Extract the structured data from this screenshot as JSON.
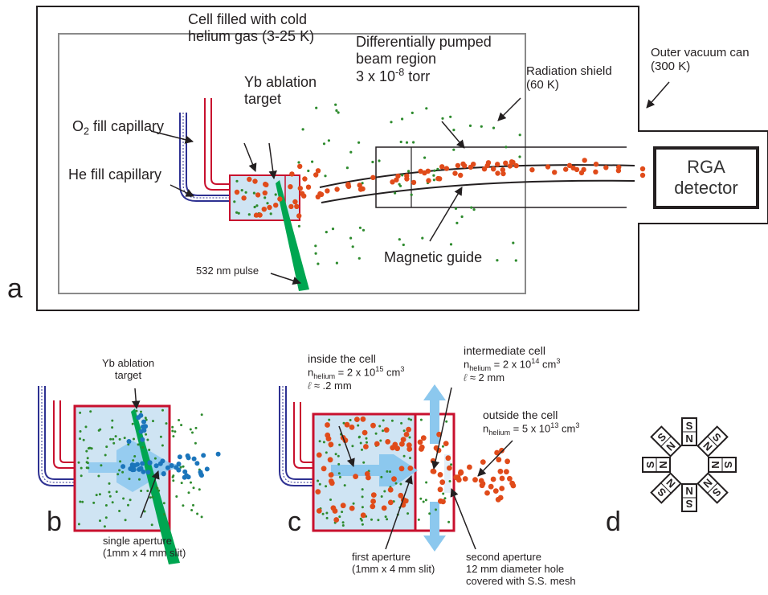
{
  "panel_a": {
    "letter": "a",
    "cell_label": [
      "Cell filled with cold",
      "helium gas (3-25 K)"
    ],
    "diff_pumped_label": [
      "Differentially pumped",
      "beam region"
    ],
    "pressure_base": "3 x 10",
    "pressure_exp": "-8",
    "pressure_unit": " torr",
    "radiation_shield": [
      "Radiation shield",
      "(60 K)"
    ],
    "outer_can": [
      "Outer vacuum can",
      "(300 K)"
    ],
    "o2_prefix": "O",
    "o2_sub": "2",
    "o2_suffix": " fill capillary",
    "he_fill": "He fill capillary",
    "yb_target": [
      "Yb ablation",
      "target"
    ],
    "pulse": "532 nm pulse",
    "magnetic_guide": "Magnetic guide",
    "rga": [
      "RGA",
      "detector"
    ]
  },
  "panel_b": {
    "letter": "b",
    "yb_target": [
      "Yb ablation",
      "target"
    ],
    "aperture": [
      "single aperture",
      "(1mm x 4 mm slit)"
    ]
  },
  "panel_c": {
    "letter": "c",
    "inside": {
      "title": "inside the cell",
      "n": "n",
      "n_sub": "helium",
      "eq": " = 2 x 10",
      "exp": "15",
      "unit": " cm",
      "unit_exp": "3",
      "ell": "ℓ",
      "ell_val": "  ≈ .2 mm"
    },
    "intermediate": {
      "title": "intermediate cell",
      "n": "n",
      "n_sub": "helium",
      "eq": " = 2 x 10",
      "exp": "14",
      "unit": " cm",
      "unit_exp": "3",
      "ell": "ℓ",
      "ell_val": "  ≈ 2 mm"
    },
    "outside": {
      "title": "outside the cell",
      "n": "n",
      "n_sub": "helium",
      "eq": " = 5 x 10",
      "exp": "13",
      "unit": " cm",
      "unit_exp": "3"
    },
    "first_aperture": [
      "first aperture",
      "(1mm x 4 mm slit)"
    ],
    "second_aperture": [
      "second aperture",
      "12 mm diameter hole",
      "covered with S.S. mesh"
    ]
  },
  "panel_d": {
    "letter": "d",
    "magnet_top": "S",
    "magnet_bottom": "N",
    "magnet_left": "S",
    "magnet_right": "N"
  },
  "colors": {
    "capillary_red": "#c8102e",
    "capillary_blue": "#2e3192",
    "cell_fill": "#cfe4f3",
    "cell_border": "#c8102e",
    "helium_dot": "#2e8b2e",
    "yb_atom": "#e04b1a",
    "yb_atom_b": "#1b75bb",
    "laser": "#00a651",
    "flow_arrow": "#8cc8ee",
    "shield_border": "#8a8a8a"
  }
}
